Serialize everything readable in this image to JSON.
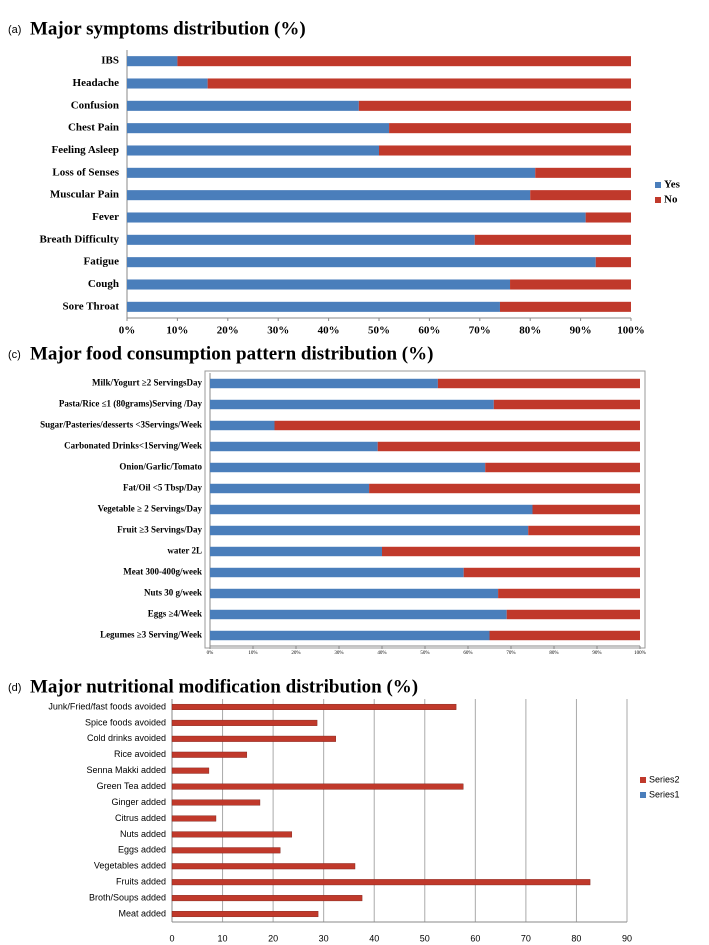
{
  "chart_data": [
    {
      "type": "stacked-bar",
      "panel": "(a)",
      "title": "Major symptoms distribution (%)",
      "categories": [
        "IBS",
        "Headache",
        "Confusion",
        "Chest Pain",
        "Feeling Asleep",
        "Loss of Senses",
        "Muscular Pain",
        "Fever",
        "Breath Difficulty",
        "Fatigue",
        "Cough",
        "Sore Throat"
      ],
      "series": [
        {
          "name": "Yes",
          "color": "#4a7ebb",
          "values": [
            10,
            16,
            46,
            52,
            50,
            81,
            80,
            91,
            69,
            93,
            76,
            74
          ]
        },
        {
          "name": "No",
          "color": "#c0392b",
          "values": [
            90,
            84,
            54,
            48,
            50,
            19,
            20,
            9,
            31,
            7,
            24,
            26
          ]
        }
      ],
      "xlim": [
        0,
        100
      ],
      "xticks": [
        {
          "value": 0,
          "label": "0%"
        },
        {
          "value": 10,
          "label": "10%"
        },
        {
          "value": 20,
          "label": "20%"
        },
        {
          "value": 30,
          "label": "30%"
        },
        {
          "value": 40,
          "label": "40%"
        },
        {
          "value": 50,
          "label": "50%"
        },
        {
          "value": 60,
          "label": "60%"
        },
        {
          "value": 70,
          "label": "70%"
        },
        {
          "value": 80,
          "label": "80%"
        },
        {
          "value": 90,
          "label": "90%"
        },
        {
          "value": 100,
          "label": "100%"
        }
      ],
      "grid": false,
      "frame": false
    },
    {
      "type": "stacked-bar",
      "panel": "(c)",
      "title": "Major food consumption pattern distribution (%)",
      "categories": [
        "Milk/Yogurt ≥2 ServingsDay",
        "Pasta/Rice ≤1 (80grams)Serving /Day",
        "Sugar/Pasteries/desserts <3Servings/Week",
        "Carbonated Drinks<1Serving/Week",
        "Onion/Garlic/Tomato",
        "Fat/Oil <5 Tbsp/Day",
        "Vegetable ≥ 2 Servings/Day",
        "Fruit ≥3 Servings/Day",
        "water 2L",
        "Meat 300-400g/week",
        "Nuts 30 g/week",
        "Eggs ≥4/Week",
        "Legumes ≥3 Serving/Week"
      ],
      "series": [
        {
          "color": "#4a7ebb",
          "values": [
            53,
            66,
            15,
            39,
            64,
            37,
            75,
            74,
            40,
            59,
            67,
            69,
            65
          ]
        },
        {
          "color": "#c0392b",
          "values": [
            47,
            34,
            85,
            61,
            36,
            63,
            25,
            26,
            60,
            41,
            33,
            31,
            35
          ]
        }
      ],
      "xlim": [
        0,
        100
      ],
      "xticks": [
        {
          "value": 0,
          "label": "0%"
        },
        {
          "value": 10,
          "label": "10%"
        },
        {
          "value": 20,
          "label": "20%"
        },
        {
          "value": 30,
          "label": "30%"
        },
        {
          "value": 40,
          "label": "40%"
        },
        {
          "value": 50,
          "label": "50%"
        },
        {
          "value": 60,
          "label": "60%"
        },
        {
          "value": 70,
          "label": "70%"
        },
        {
          "value": 80,
          "label": "80%"
        },
        {
          "value": 90,
          "label": "90%"
        },
        {
          "value": 100,
          "label": "100%"
        }
      ],
      "grid": false,
      "frame": true
    },
    {
      "type": "bar",
      "panel": "(d)",
      "title": "Major nutritional modification distribution (%)",
      "categories": [
        "Junk/Fried/fast foods avoided",
        "Spice foods avoided",
        "Cold drinks avoided",
        "Rice avoided",
        "Senna Makki added",
        "Green Tea added",
        "Ginger added",
        "Citrus added",
        "Nuts added",
        "Eggs added",
        "Vegetables added",
        "Fruits added",
        "Broth/Soups added",
        "Meat added"
      ],
      "series": [
        {
          "name": "Series2",
          "color": "#c0392b",
          "values": [
            56.2,
            28.7,
            32.4,
            14.8,
            7.3,
            57.6,
            17.4,
            8.7,
            23.7,
            21.4,
            36.2,
            82.7,
            37.6,
            28.9
          ]
        },
        {
          "name": "Series1",
          "color": "#4a7ebb",
          "values": [
            null,
            null,
            null,
            null,
            null,
            null,
            null,
            null,
            null,
            null,
            null,
            null,
            null,
            null
          ]
        }
      ],
      "xlim": [
        0,
        90
      ],
      "xticks": [
        0,
        10,
        20,
        30,
        40,
        50,
        60,
        70,
        80,
        90
      ],
      "grid": true,
      "frame": false
    }
  ]
}
